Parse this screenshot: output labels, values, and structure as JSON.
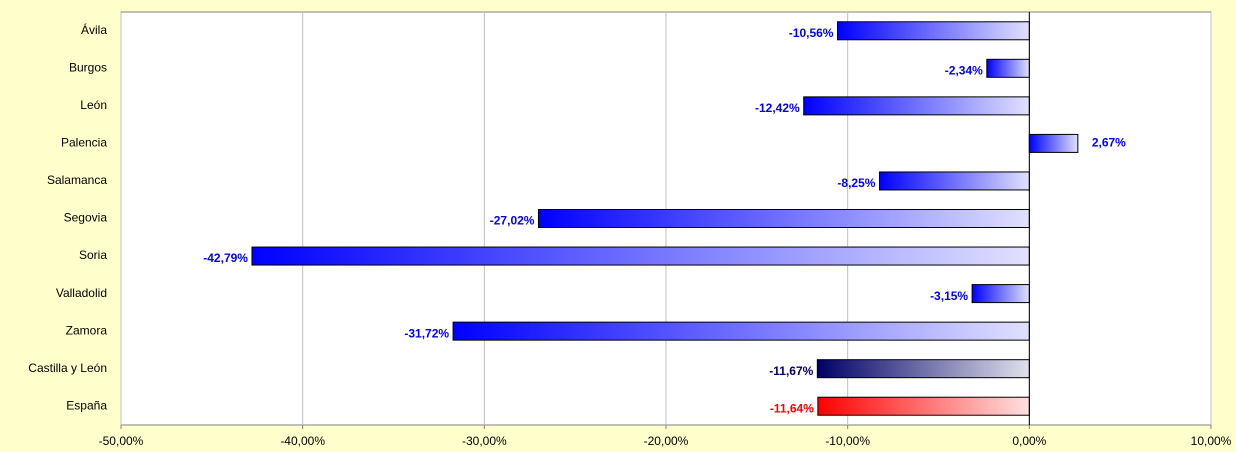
{
  "chart_data": {
    "type": "bar",
    "orientation": "horizontal",
    "categories": [
      "Ávila",
      "Burgos",
      "León",
      "Palencia",
      "Salamanca",
      "Segovia",
      "Soria",
      "Valladolid",
      "Zamora",
      "Castilla y León",
      "España"
    ],
    "values": [
      -10.56,
      -2.34,
      -12.42,
      2.67,
      -8.25,
      -27.02,
      -42.79,
      -3.15,
      -31.72,
      -11.67,
      -11.64
    ],
    "value_labels": [
      "-10,56%",
      "-2,34%",
      "-12,42%",
      "2,67%",
      "-8,25%",
      "-27,02%",
      "-42,79%",
      "-3,15%",
      "-31,72%",
      "-11,67%",
      "-11,64%"
    ],
    "colors": [
      "#0000ff",
      "#0000ff",
      "#0000ff",
      "#0000ff",
      "#0000ff",
      "#0000ff",
      "#0000ff",
      "#0000ff",
      "#0000ff",
      "#000066",
      "#ff0000"
    ],
    "xlim": [
      -50,
      10
    ],
    "xticks": [
      {
        "value": -50,
        "label": "-50,00%"
      },
      {
        "value": -40,
        "label": "-40,00%"
      },
      {
        "value": -30,
        "label": "-30,00%"
      },
      {
        "value": -20,
        "label": "-20,00%"
      },
      {
        "value": -10,
        "label": "-10,00%"
      },
      {
        "value": 0,
        "label": "0,00%"
      },
      {
        "value": 10,
        "label": "10,00%"
      }
    ],
    "grid": true
  }
}
